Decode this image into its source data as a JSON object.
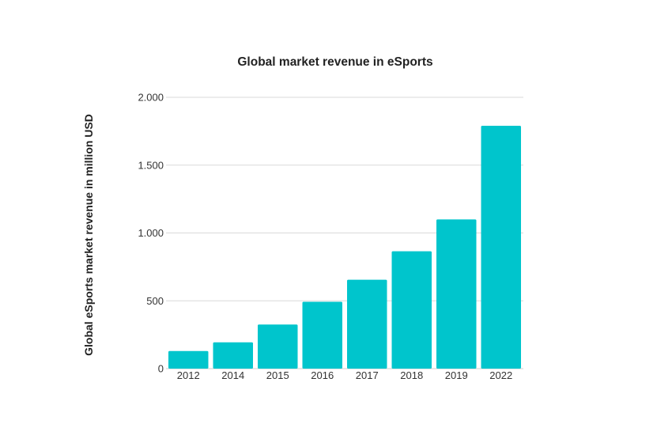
{
  "chart_data": {
    "type": "bar",
    "title": "Global market revenue in eSports",
    "xlabel": "",
    "ylabel": "Global eSports market revenue in million USD",
    "categories": [
      "2012",
      "2014",
      "2015",
      "2016",
      "2017",
      "2018",
      "2019",
      "2022"
    ],
    "values": [
      130,
      194,
      325,
      493,
      655,
      865,
      1100,
      1790
    ],
    "ylim": [
      0,
      2000
    ],
    "yticks": [
      0,
      500,
      1000,
      1500,
      2000
    ],
    "ytick_labels": [
      "0",
      "500",
      "1.000",
      "1.500",
      "2.000"
    ],
    "grid": true,
    "legend": "none",
    "bar_color": "#00c5cc"
  }
}
